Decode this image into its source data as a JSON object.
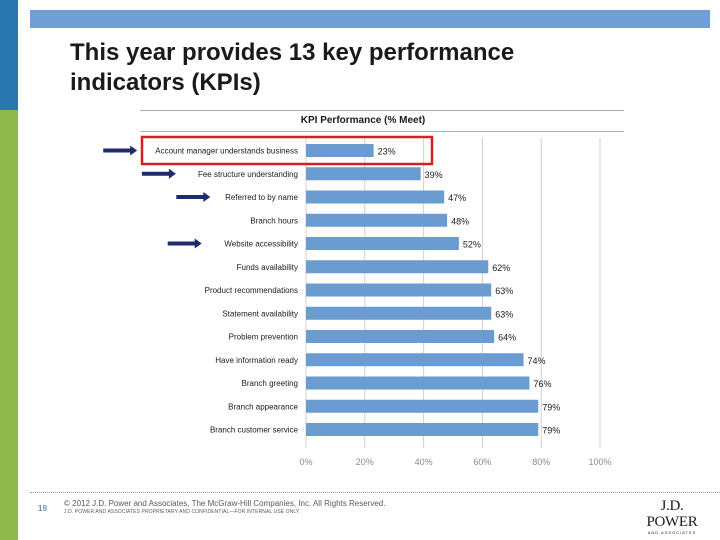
{
  "slide": {
    "title": "This year provides 13 key performance indicators (KPIs)",
    "page_number": "19",
    "copyright": "© 2012 J.D. Power and Associates, The McGraw-Hill Companies, Inc. All Rights Reserved.",
    "confidential": "J.D. POWER AND ASSOCIATES PROPRIETARY AND CONFIDENTIAL—FOR INTERNAL USE ONLY",
    "logo_text": "J.D. POWER",
    "logo_subtext": "AND ASSOCIATES"
  },
  "colors": {
    "bar": "#6a9bd1",
    "highlight_box": "#d42020",
    "arrow": "#1f2a6b",
    "grid": "#d0d0d0",
    "tick_text": "#8a8a8a"
  },
  "chart_data": {
    "type": "bar",
    "orientation": "horizontal",
    "title": "KPI Performance (% Meet)",
    "categories": [
      "Account manager understands business",
      "Fee structure understanding",
      "Referred to by name",
      "Branch hours",
      "Website accessibility",
      "Funds availability",
      "Product recommendations",
      "Statement availability",
      "Problem prevention",
      "Have information ready",
      "Branch greeting",
      "Branch appearance",
      "Branch customer service"
    ],
    "values": [
      23,
      39,
      47,
      48,
      52,
      62,
      63,
      63,
      64,
      74,
      76,
      79,
      79
    ],
    "value_labels": [
      "23%",
      "39%",
      "47%",
      "48%",
      "52%",
      "62%",
      "63%",
      "63%",
      "64%",
      "74%",
      "76%",
      "79%",
      "79%"
    ],
    "xlim": [
      0,
      100
    ],
    "x_ticks": [
      "0%",
      "20%",
      "40%",
      "60%",
      "80%",
      "100%"
    ],
    "highlighted": [
      "Account manager understands business"
    ],
    "arrowed": [
      "Account manager understands business",
      "Fee structure understanding",
      "Referred to by name",
      "Website accessibility"
    ]
  }
}
